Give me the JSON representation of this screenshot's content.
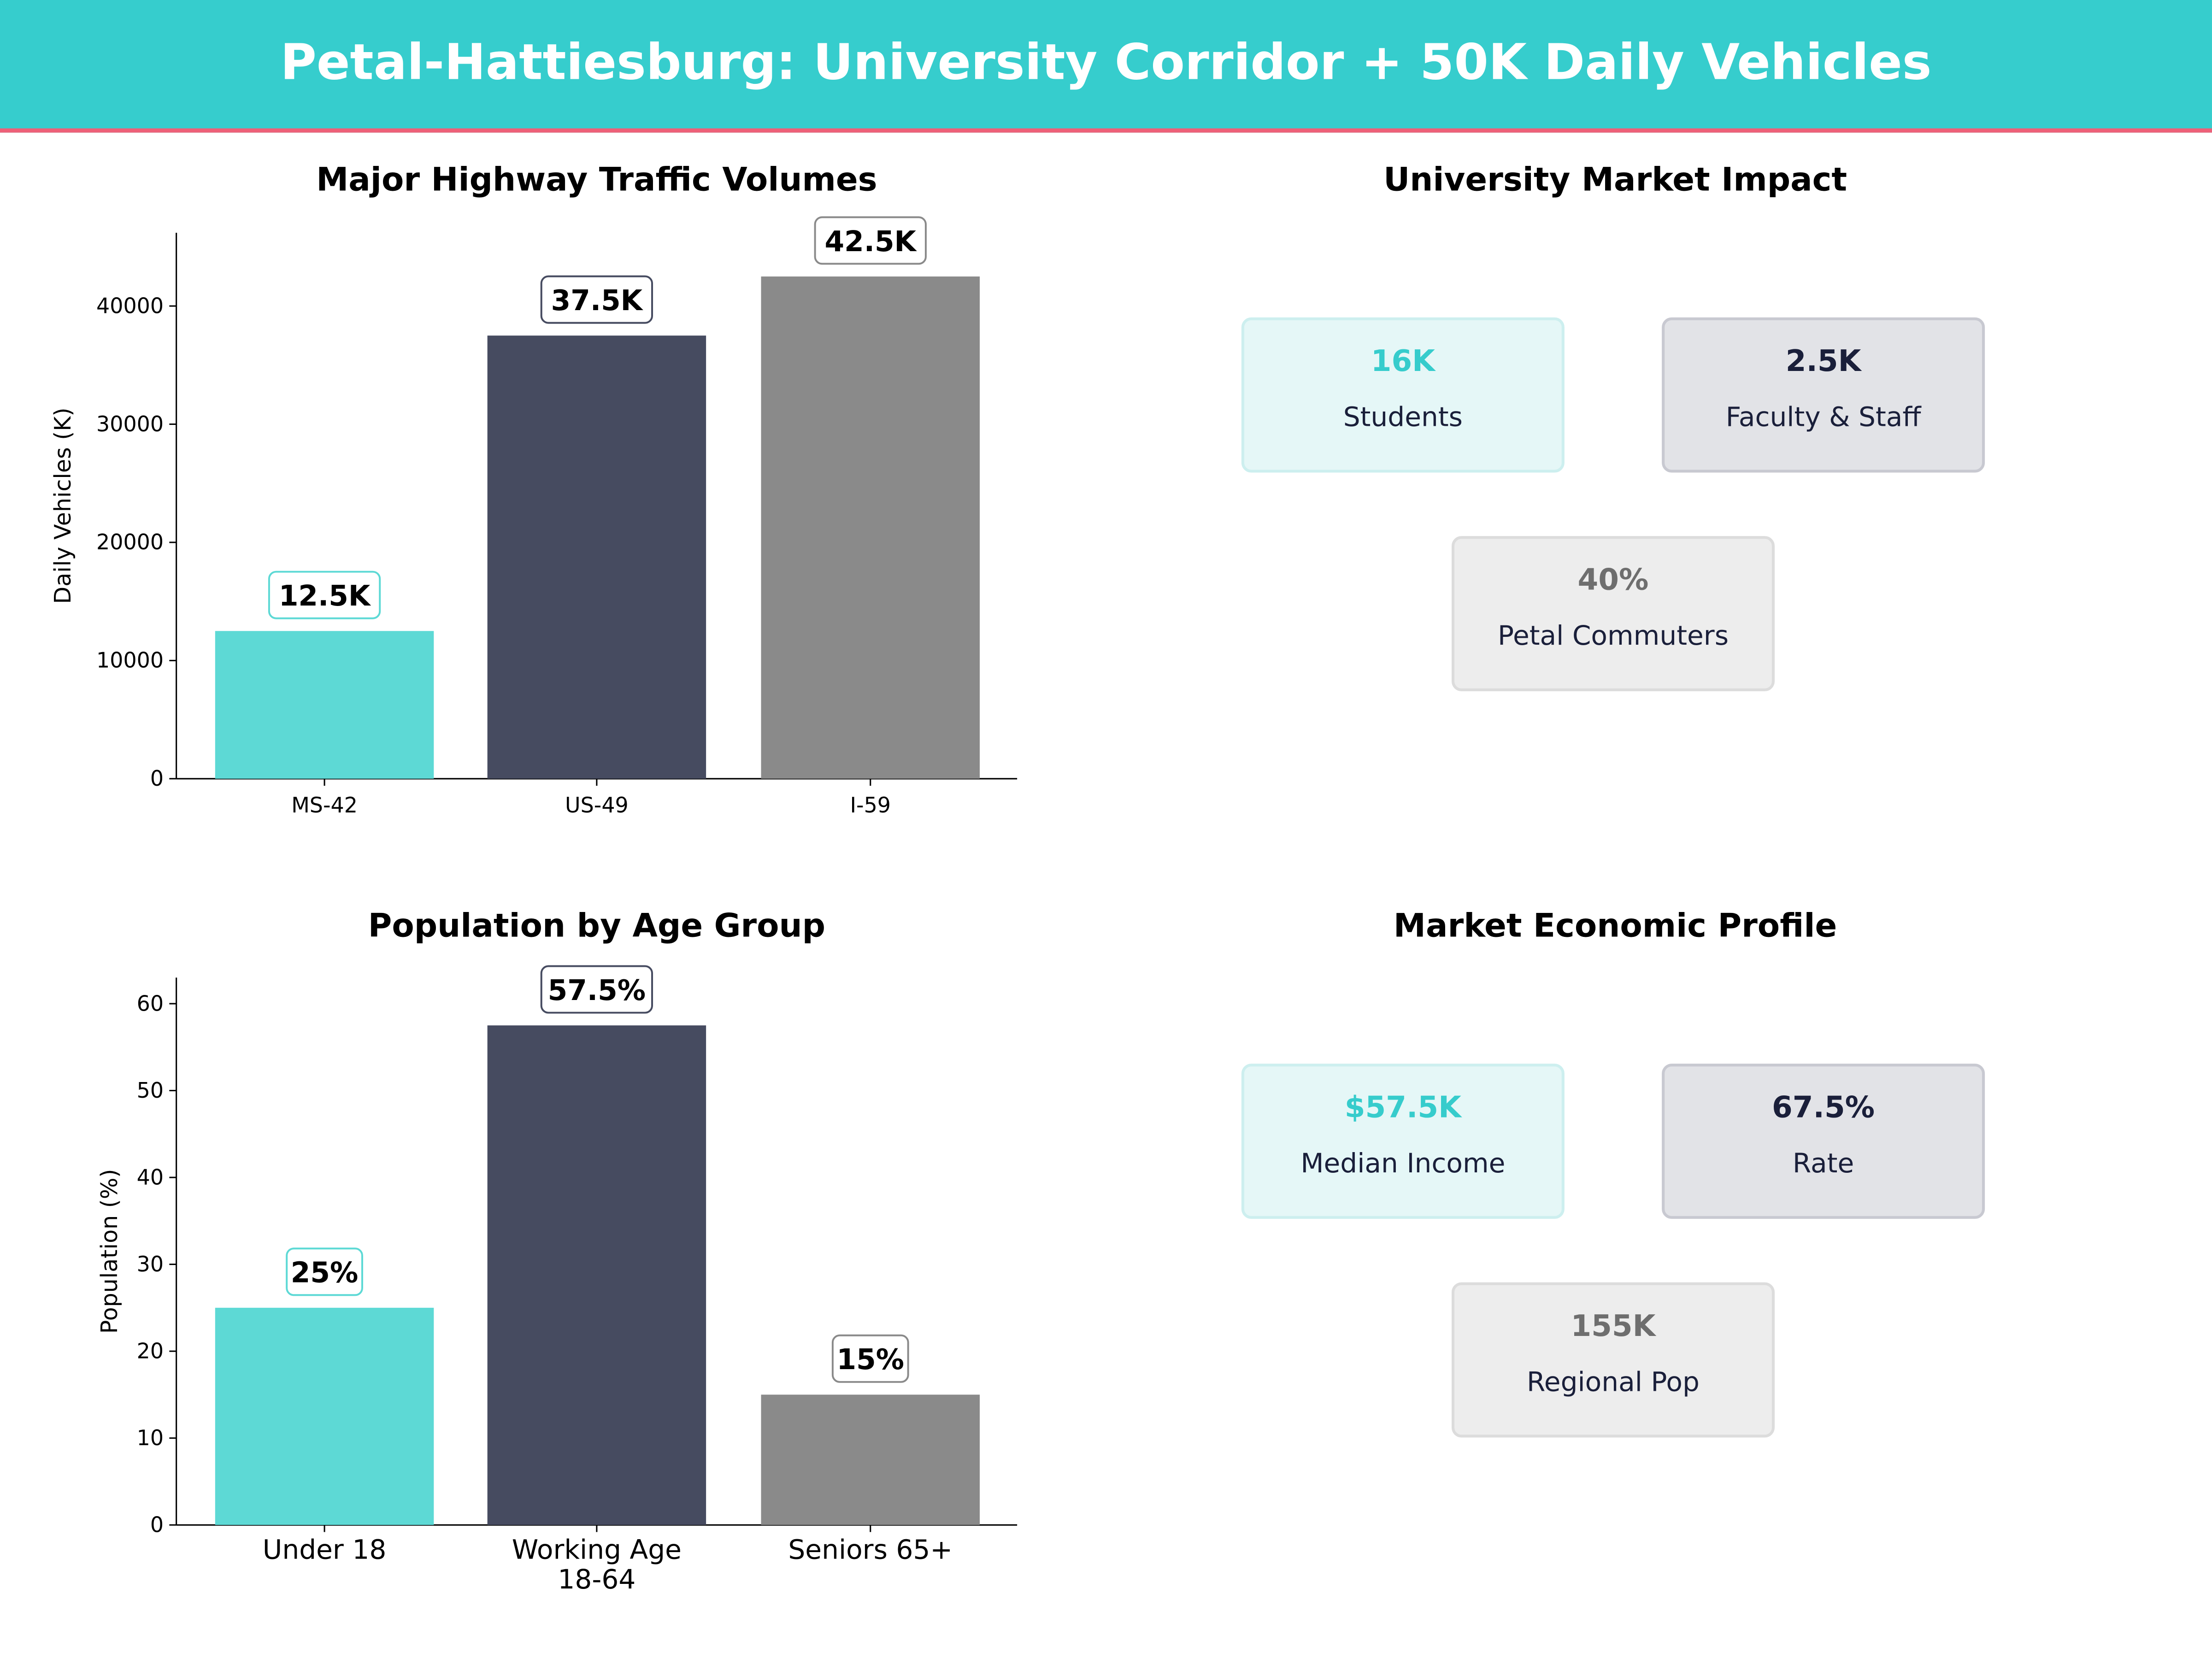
{
  "title": "Petal-Hattiesburg: University Corridor + 50K Daily Vehicles",
  "colors": {
    "header": "#36cdcd",
    "accent_line": "#ee6078",
    "bars": [
      "#5dd9d5",
      "#464b60",
      "#8a8a8a"
    ],
    "card_values": [
      "#36cccc",
      "#1a1f3a",
      "#6e6e6e"
    ]
  },
  "chart_data": [
    {
      "type": "bar",
      "title": "Major Highway Traffic Volumes",
      "xlabel": "",
      "ylabel": "Daily Vehicles (K)",
      "categories": [
        "MS-42",
        "US-49",
        "I-59"
      ],
      "values": [
        12500,
        37500,
        42500
      ],
      "data_labels": [
        "12.5K",
        "37.5K",
        "42.5K"
      ],
      "ylim": [
        0,
        46200
      ],
      "yticks": [
        0,
        10000,
        20000,
        30000,
        40000
      ],
      "grid": false
    },
    {
      "type": "bar",
      "title": "Population by Age Group",
      "xlabel": "",
      "ylabel": "Population (%)",
      "categories": [
        "Under 18",
        "Working Age\n18-64",
        "Seniors 65+"
      ],
      "values": [
        25,
        57.5,
        15
      ],
      "data_labels": [
        "25%",
        "57.5%",
        "15%"
      ],
      "ylim": [
        0,
        63
      ],
      "yticks": [
        0,
        10,
        20,
        30,
        40,
        50,
        60
      ],
      "grid": false
    }
  ],
  "university": {
    "title": "University Market Impact",
    "cards": [
      {
        "value": "16K",
        "label": "Students"
      },
      {
        "value": "2.5K",
        "label": "Faculty & Staff"
      },
      {
        "value": "40%",
        "label": "Petal Commuters"
      }
    ]
  },
  "economic": {
    "title": "Market Economic Profile",
    "cards": [
      {
        "value": "$57.5K",
        "label": "Median Income"
      },
      {
        "value": "67.5%",
        "label": "Rate"
      },
      {
        "value": "155K",
        "label": "Regional Pop"
      }
    ]
  }
}
